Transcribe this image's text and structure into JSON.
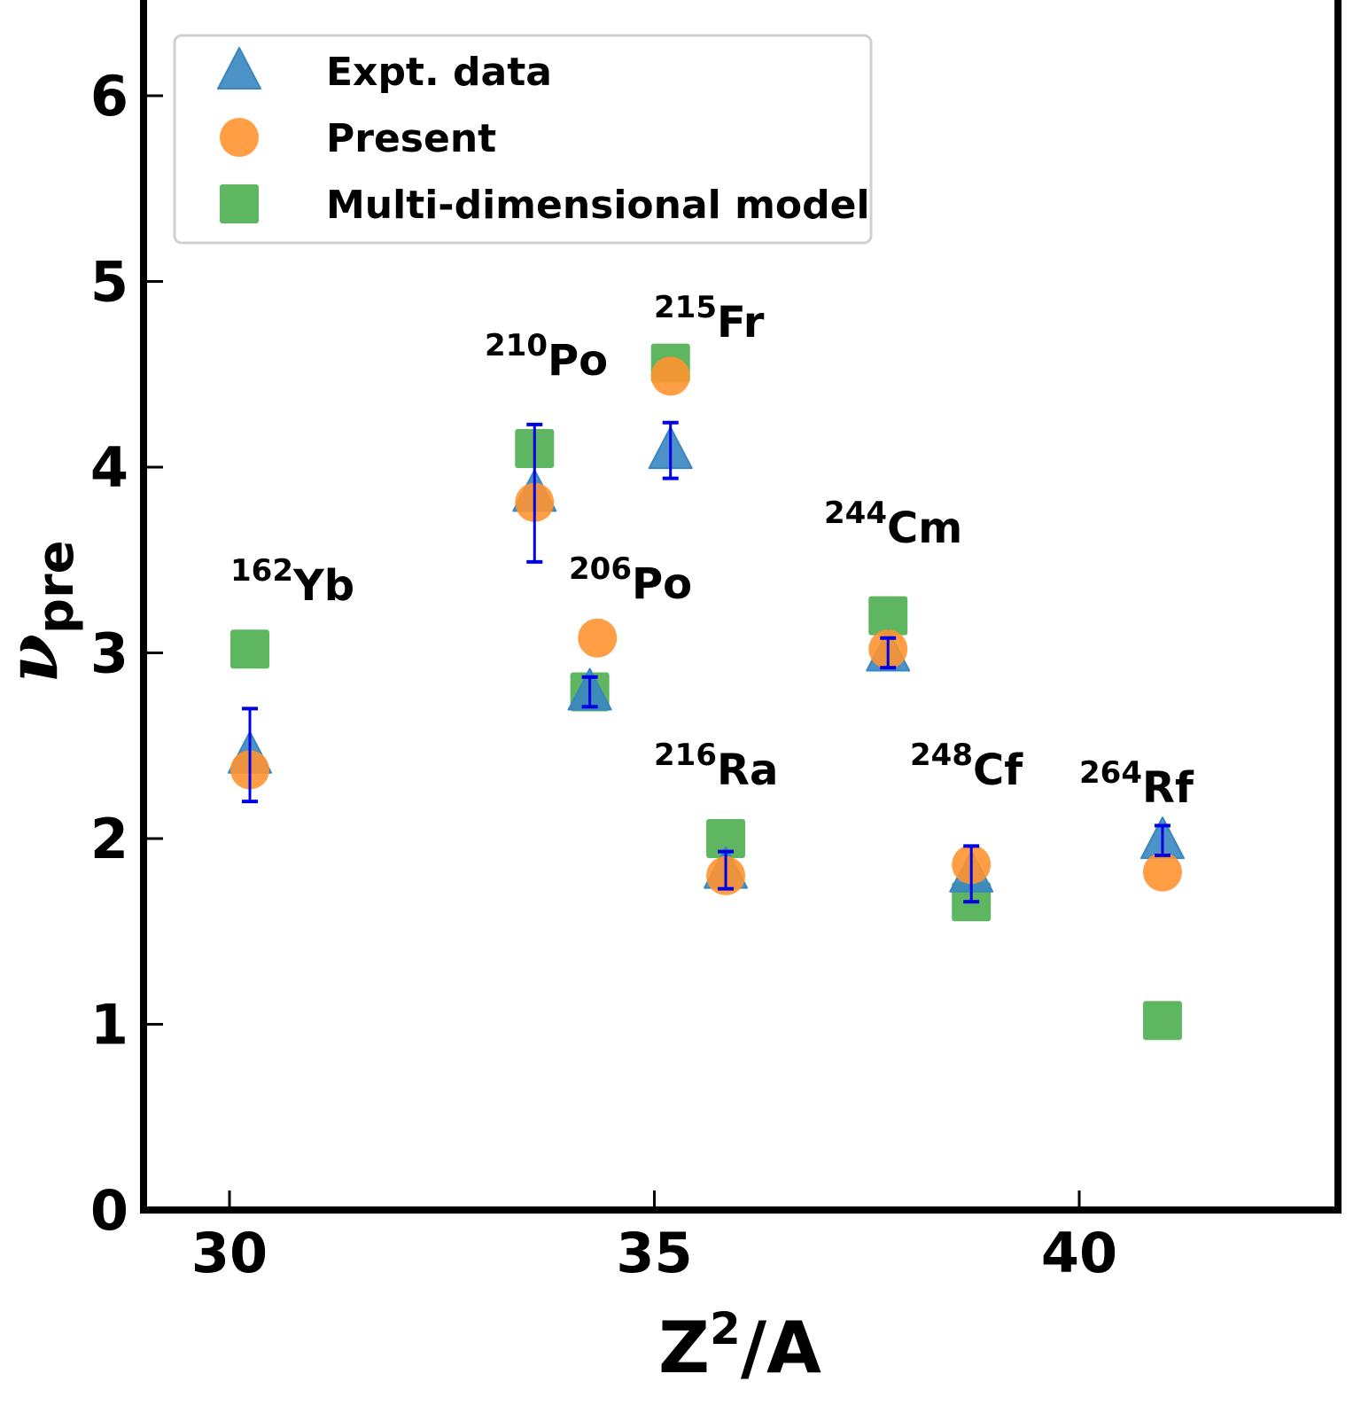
{
  "chart_data": {
    "type": "scatter",
    "title": "",
    "xlabel": "Z2/A",
    "xlabel_base": "Z",
    "xlabel_sup": "2",
    "xlabel_rest": "/A",
    "ylabel": "ν_pre",
    "ylabel_main": "ν",
    "ylabel_sub": "pre",
    "xlim": [
      29,
      43.05
    ],
    "ylim": [
      0,
      6.52
    ],
    "xticks": [
      30,
      35,
      40
    ],
    "xtick_labels": [
      "30",
      "35",
      "40"
    ],
    "yticks": [
      0,
      1,
      2,
      3,
      4,
      5,
      6
    ],
    "ytick_labels": [
      "0",
      "1",
      "2",
      "3",
      "4",
      "5",
      "6"
    ],
    "grid": false,
    "legend_position": "top-left",
    "series": [
      {
        "name": "Expt. data",
        "marker": "triangle",
        "color": "#3a86c0",
        "errorbar_color": "#0000e6",
        "x": [
          30.24,
          33.59,
          34.24,
          35.19,
          35.84,
          37.75,
          38.73,
          40.98
        ],
        "y": [
          2.45,
          3.86,
          2.79,
          4.09,
          1.83,
          3.0,
          1.81,
          1.99
        ],
        "yerr": [
          0.25,
          0.37,
          0.08,
          0.15,
          0.1,
          0.08,
          0.15,
          0.08
        ]
      },
      {
        "name": "Present",
        "marker": "circle",
        "color": "#ff9331",
        "x": [
          30.24,
          33.59,
          34.33,
          35.19,
          35.84,
          37.75,
          38.73,
          40.98
        ],
        "y": [
          2.37,
          3.81,
          3.08,
          4.49,
          1.8,
          3.02,
          1.86,
          1.82
        ]
      },
      {
        "name": "Multi-dimensional model",
        "marker": "square",
        "color": "#4caf4f",
        "x": [
          30.24,
          33.59,
          34.24,
          35.19,
          35.84,
          37.75,
          38.73,
          40.98
        ],
        "y": [
          3.02,
          4.1,
          2.79,
          4.56,
          2.0,
          3.2,
          1.66,
          1.02
        ]
      }
    ],
    "annotations": [
      {
        "mass": "162",
        "element": "Yb"
      },
      {
        "mass": "210",
        "element": "Po"
      },
      {
        "mass": "206",
        "element": "Po"
      },
      {
        "mass": "215",
        "element": "Fr"
      },
      {
        "mass": "216",
        "element": "Ra"
      },
      {
        "mass": "244",
        "element": "Cm"
      },
      {
        "mass": "248",
        "element": "Cf"
      },
      {
        "mass": "264",
        "element": "Rf"
      }
    ]
  }
}
